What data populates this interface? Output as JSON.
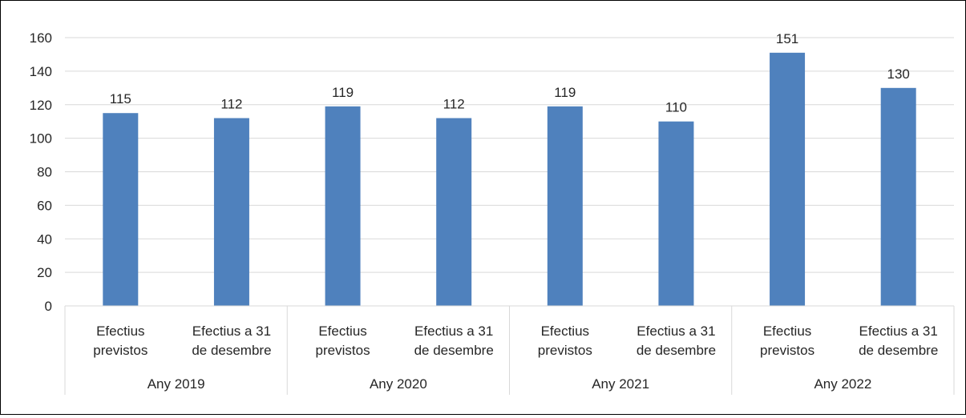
{
  "chart_data": {
    "type": "bar",
    "groups": [
      {
        "label": "Any 2019",
        "categories": [
          [
            "Efectius",
            "previstos"
          ],
          [
            "Efectius a 31",
            "de desembre"
          ]
        ],
        "values": [
          115,
          112
        ]
      },
      {
        "label": "Any 2020",
        "categories": [
          [
            "Efectius",
            "previstos"
          ],
          [
            "Efectius a 31",
            "de desembre"
          ]
        ],
        "values": [
          119,
          112
        ]
      },
      {
        "label": "Any 2021",
        "categories": [
          [
            "Efectius",
            "previstos"
          ],
          [
            "Efectius a 31",
            "de desembre"
          ]
        ],
        "values": [
          119,
          110
        ]
      },
      {
        "label": "Any 2022",
        "categories": [
          [
            "Efectius",
            "previstos"
          ],
          [
            "Efectius a 31",
            "de desembre"
          ]
        ],
        "values": [
          151,
          130
        ]
      }
    ],
    "y_ticks": [
      "0",
      "20",
      "40",
      "60",
      "80",
      "100",
      "120",
      "140",
      "160"
    ],
    "ylim": [
      0,
      160
    ],
    "grid": true,
    "legend": "none",
    "title": "",
    "xlabel": "",
    "ylabel": "",
    "bar_color": "#4f81bd",
    "grid_color": "#d9d9d9"
  }
}
